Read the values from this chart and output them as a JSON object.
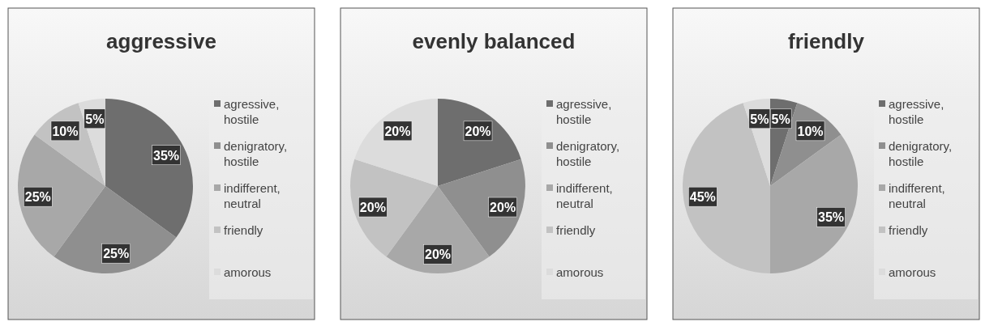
{
  "chart_data": [
    {
      "type": "pie",
      "title": "aggressive",
      "categories": [
        "agressive, hostile",
        "denigratory, hostile",
        "indifferent, neutral",
        "friendly",
        "amorous"
      ],
      "values": [
        35,
        25,
        25,
        10,
        5
      ],
      "value_labels": [
        "35%",
        "25%",
        "25%",
        "10%",
        "5%"
      ],
      "colors": [
        "#6e6e6e",
        "#8f8f8f",
        "#a8a8a8",
        "#c2c2c2",
        "#dcdcdc"
      ],
      "legend": "right"
    },
    {
      "type": "pie",
      "title": "evenly balanced",
      "categories": [
        "agressive, hostile",
        "denigratory, hostile",
        "indifferent, neutral",
        "friendly",
        "amorous"
      ],
      "values": [
        20,
        20,
        20,
        20,
        20
      ],
      "value_labels": [
        "20%",
        "20%",
        "20%",
        "20%",
        "20%"
      ],
      "colors": [
        "#6e6e6e",
        "#8f8f8f",
        "#a8a8a8",
        "#c2c2c2",
        "#dcdcdc"
      ],
      "legend": "right"
    },
    {
      "type": "pie",
      "title": "friendly",
      "categories": [
        "agressive, hostile",
        "denigratory, hostile",
        "indifferent, neutral",
        "friendly",
        "amorous"
      ],
      "values": [
        5,
        10,
        35,
        45,
        5
      ],
      "value_labels": [
        "5%",
        "10%",
        "35%",
        "45%",
        "5%"
      ],
      "colors": [
        "#6e6e6e",
        "#8f8f8f",
        "#a8a8a8",
        "#c2c2c2",
        "#dcdcdc"
      ],
      "legend": "right"
    }
  ]
}
